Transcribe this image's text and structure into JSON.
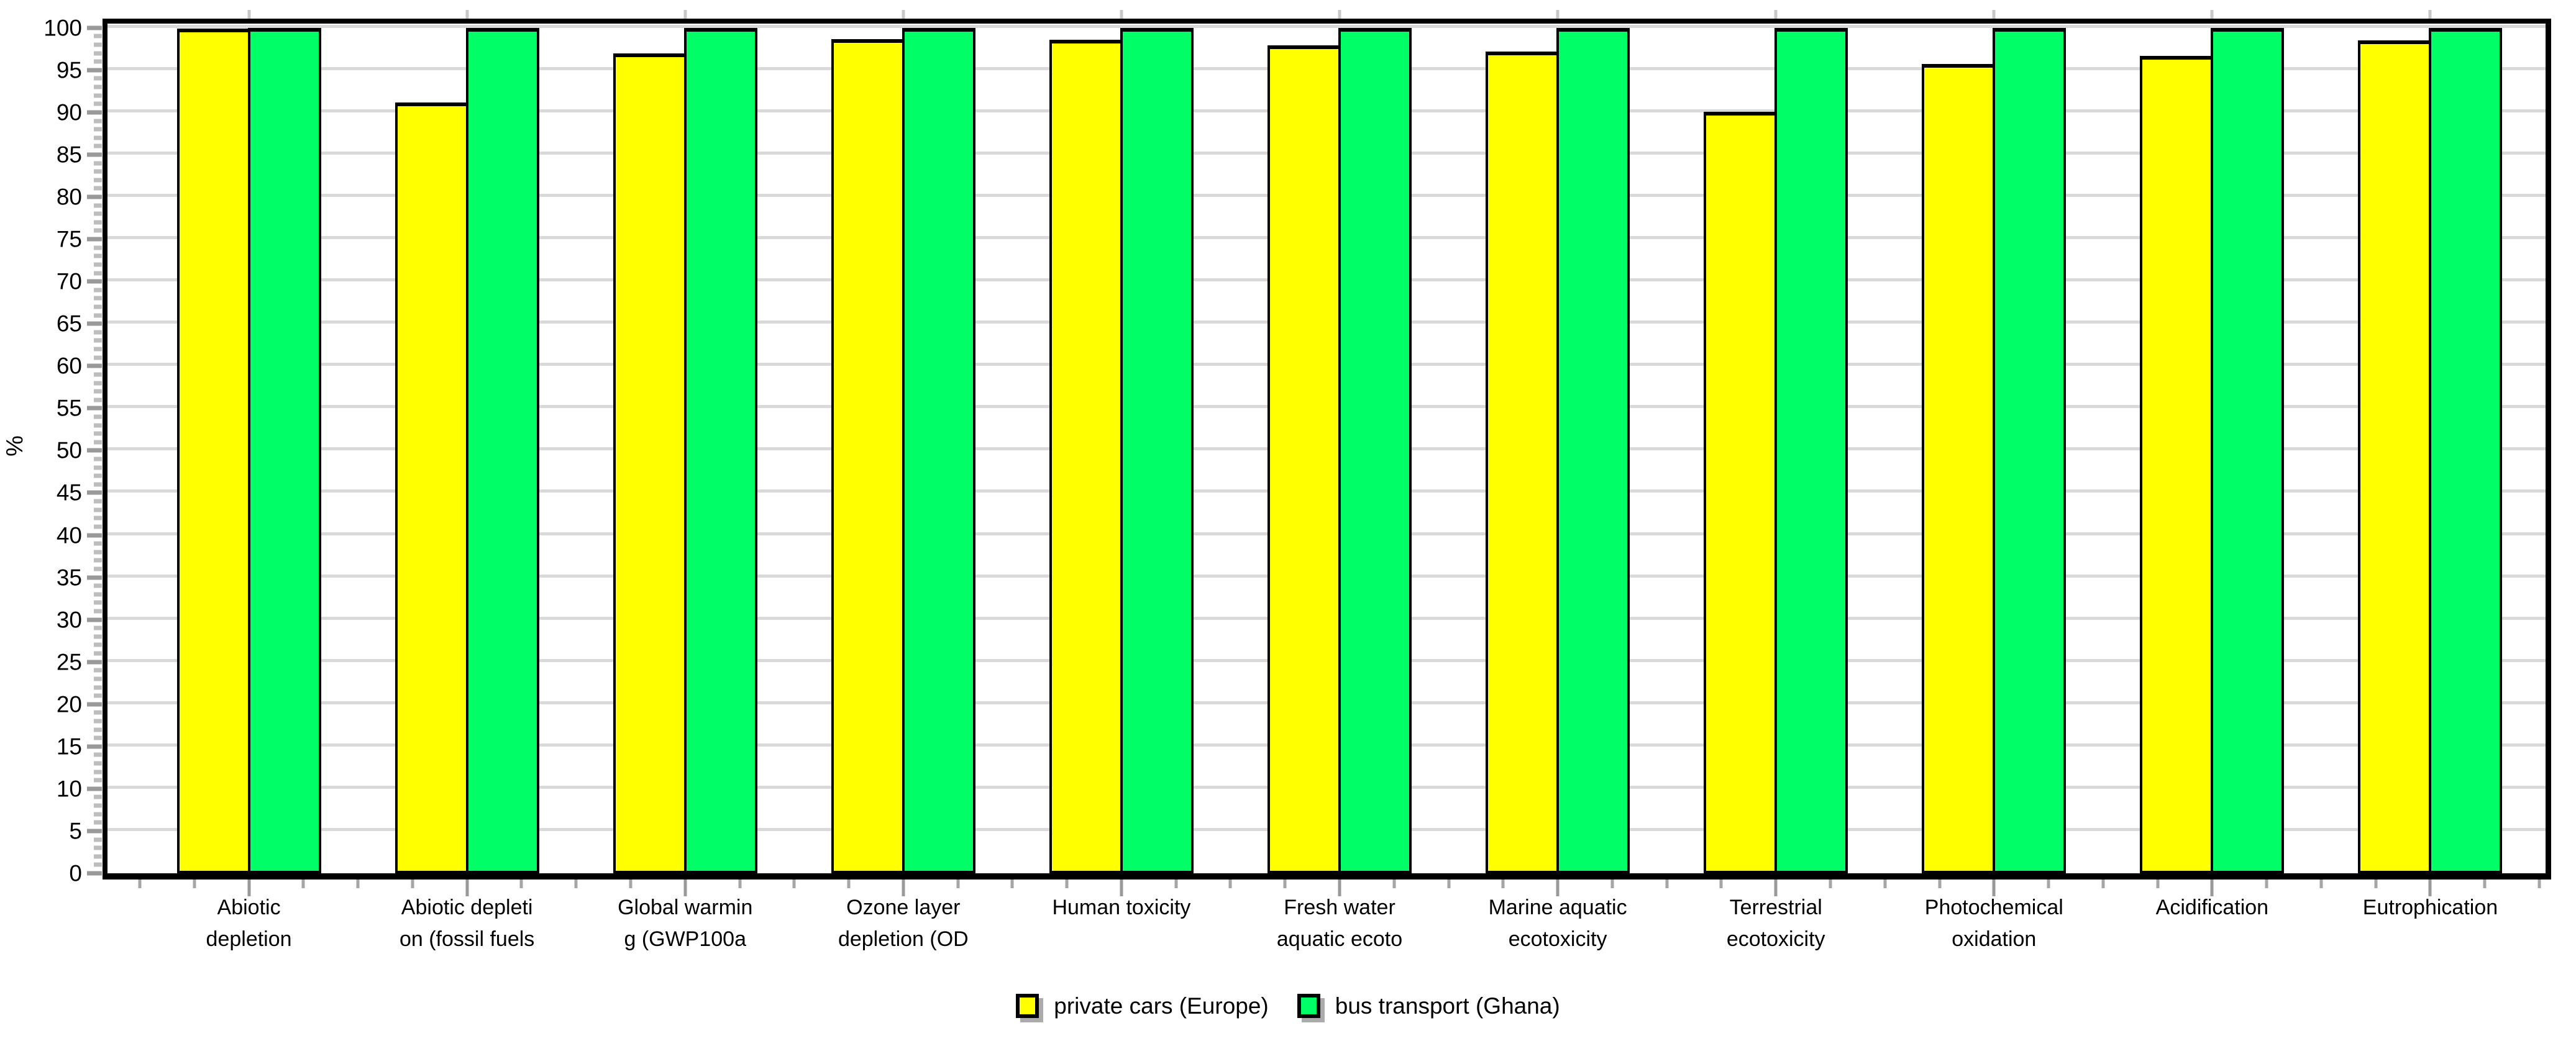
{
  "chart_data": {
    "type": "bar",
    "ylabel": "%",
    "ylim": [
      0,
      100
    ],
    "ytick_step": 5,
    "yminor_step": 1,
    "grid": true,
    "legend_position": "bottom",
    "categories": [
      "Abiotic\ndepletion",
      "Abiotic depleti\non (fossil fuels",
      "Global warmin\ng (GWP100a",
      "Ozone layer\ndepletion (OD",
      "Human toxicity",
      "Fresh water\naquatic ecoto",
      "Marine aquatic\necotoxicity",
      "Terrestrial\necotoxicity",
      "Photochemical\noxidation",
      "Acidification",
      "Eutrophication"
    ],
    "series": [
      {
        "name": "private cars (Europe)",
        "color": "#FFFF00",
        "values": [
          99.9,
          91.2,
          97.0,
          98.7,
          98.6,
          97.9,
          97.2,
          90.1,
          95.7,
          96.7,
          98.5
        ]
      },
      {
        "name": "bus transport (Ghana)",
        "color": "#00FF66",
        "values": [
          100,
          100,
          100,
          100,
          100,
          100,
          100,
          100,
          100,
          100,
          100
        ]
      }
    ]
  },
  "colors": {
    "background": "#FFFFFF",
    "axis_frame": "#000000",
    "gridline": "#D9D9D9",
    "tick_major": "#999999",
    "tick_minor": "#BDBDBD",
    "legend_swatch_shadow": "#ABABAB"
  }
}
